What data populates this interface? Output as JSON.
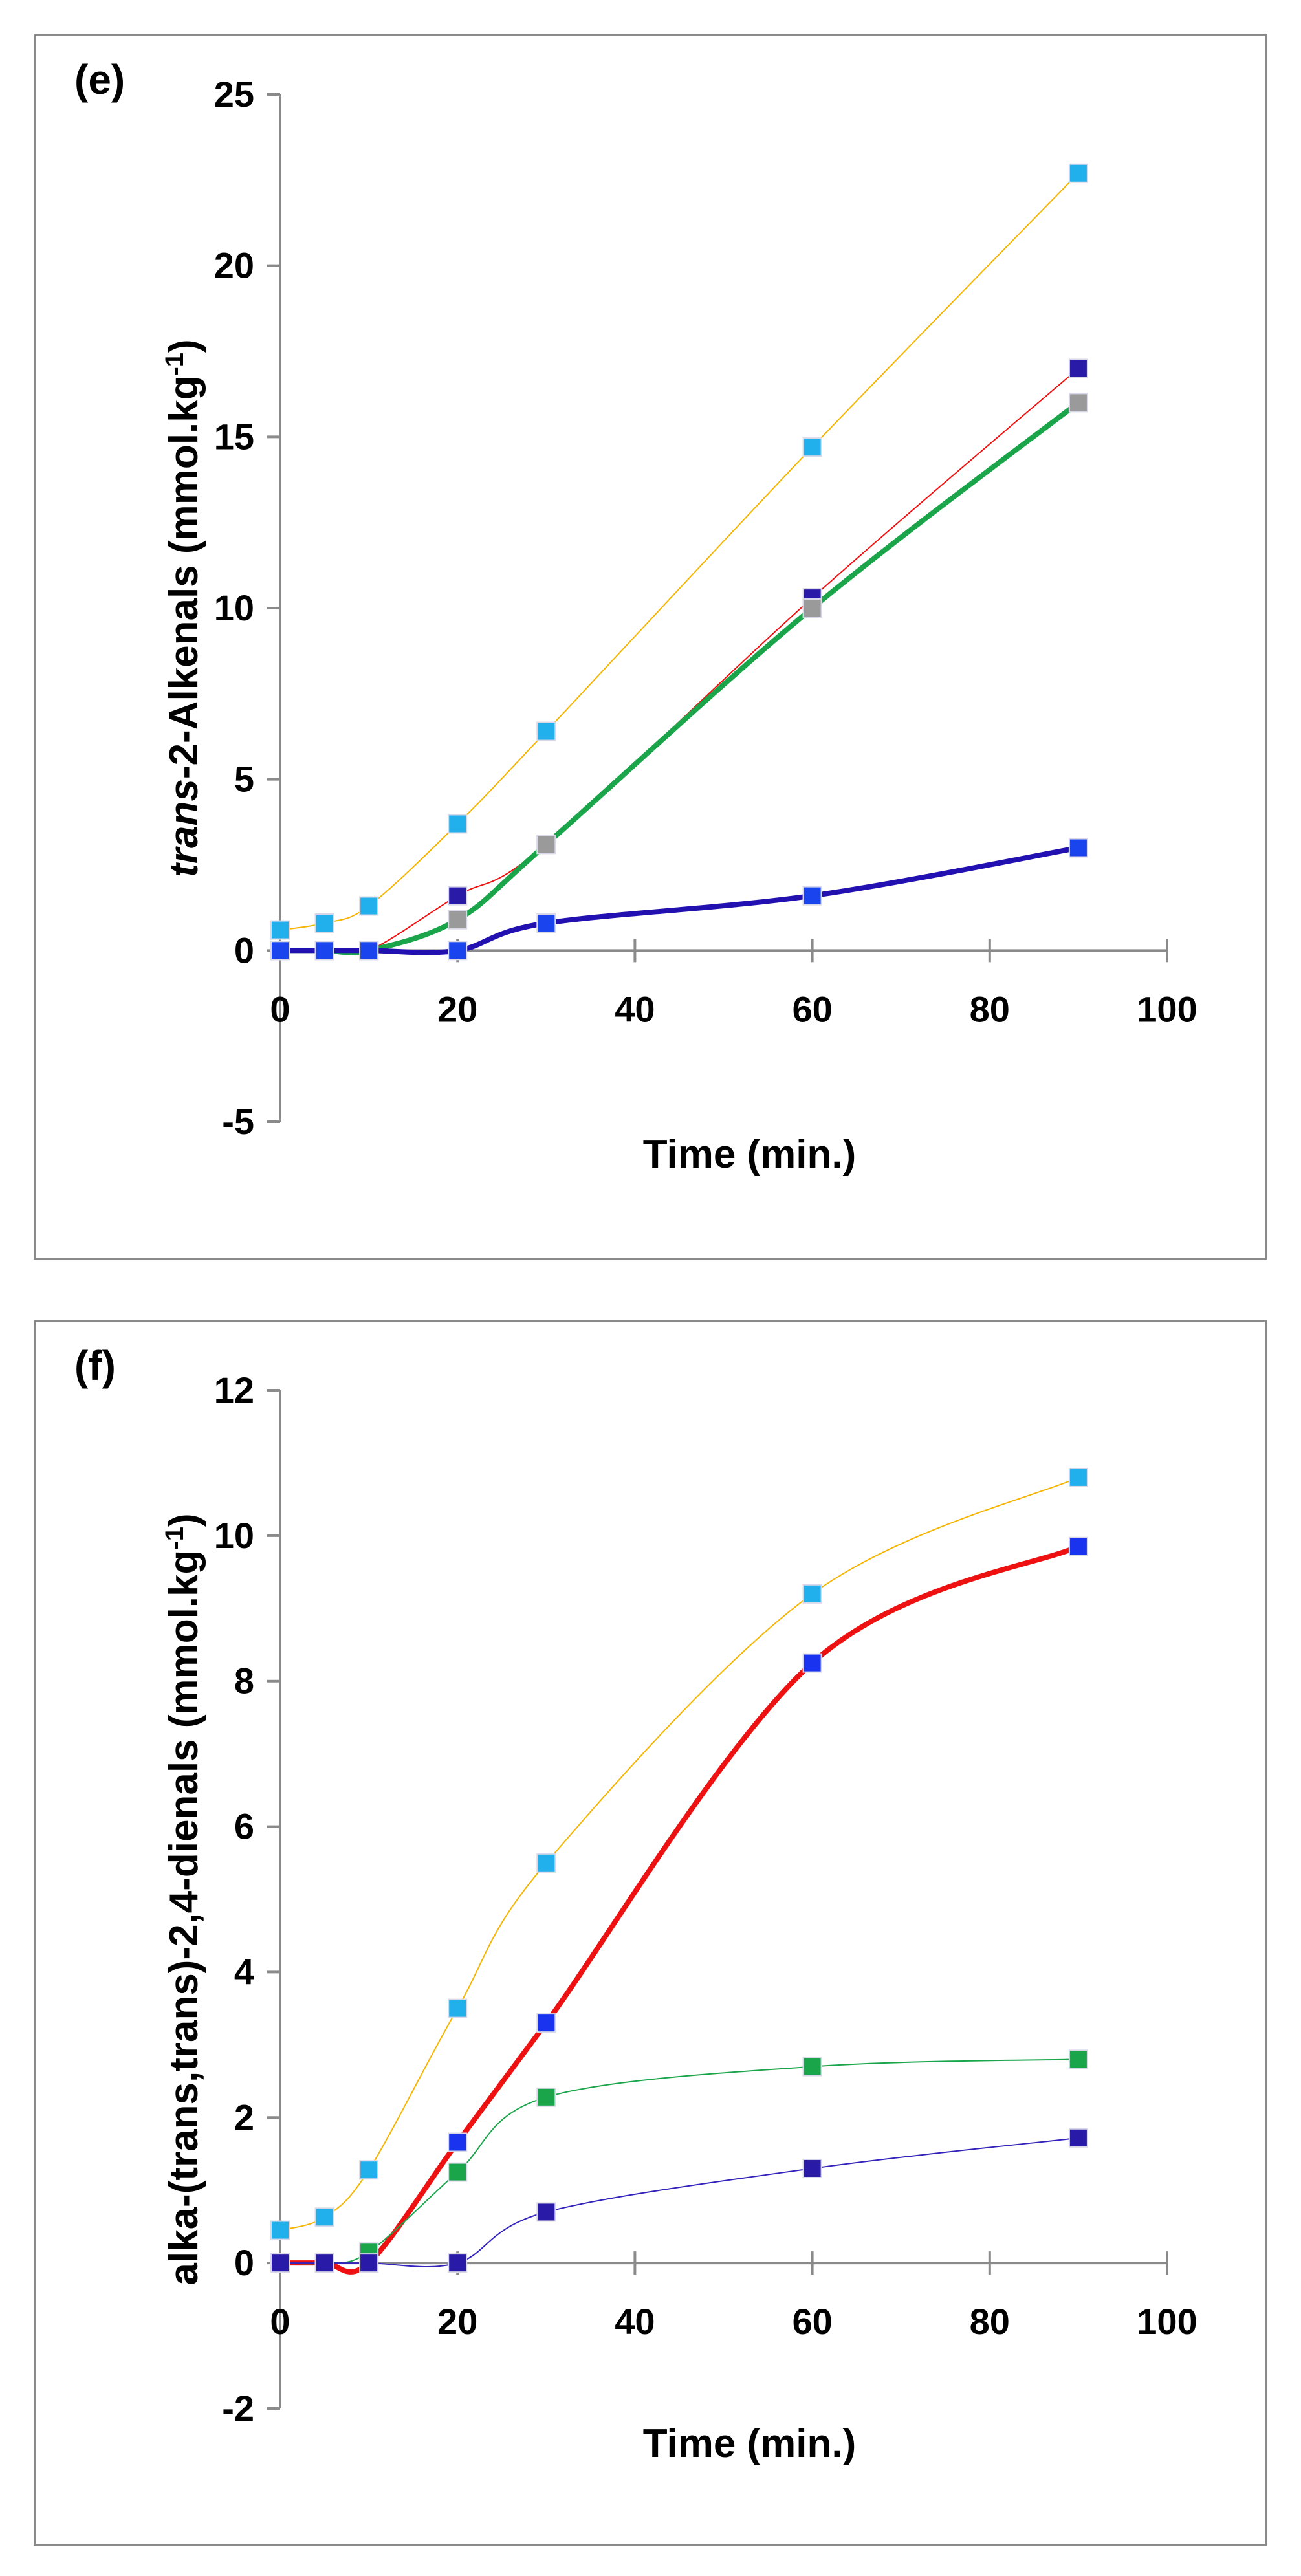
{
  "chart_data": [
    {
      "type": "line",
      "panel_label": "(e)",
      "xlabel": "Time (min.)",
      "ylabel_italic": "trans",
      "ylabel_rest": "-2-Alkenals (mmol.kg",
      "ylabel_sup": "-1",
      "ylabel_close": ")",
      "xlim": [
        0,
        100
      ],
      "ylim": [
        -5,
        25
      ],
      "xticks": [
        0,
        20,
        40,
        60,
        80,
        100
      ],
      "yticks": [
        -5,
        0,
        5,
        10,
        15,
        20,
        25
      ],
      "grid": false,
      "series": [
        {
          "color": "#f5b400",
          "marker_color": "#21b0ec",
          "line_width": 2,
          "x": [
            0,
            5,
            10,
            20,
            30,
            60,
            90
          ],
          "y": [
            0.6,
            0.8,
            1.3,
            3.7,
            6.4,
            14.7,
            22.7
          ]
        },
        {
          "color": "#ee1111",
          "marker_color": "#2a1aa8",
          "line_width": 2,
          "x": [
            0,
            5,
            10,
            20,
            30,
            60,
            90
          ],
          "y": [
            0,
            0,
            0,
            1.6,
            3.1,
            10.3,
            17.0
          ]
        },
        {
          "color": "#1aa54b",
          "marker_color": "#9a9a9a",
          "line_width": 8,
          "x": [
            0,
            5,
            10,
            20,
            30,
            60,
            90
          ],
          "y": [
            0,
            0,
            0,
            0.9,
            3.1,
            10.0,
            16.0
          ]
        },
        {
          "color": "#2211b0",
          "marker_color": "#1a44ee",
          "line_width": 8,
          "x": [
            0,
            5,
            10,
            20,
            30,
            60,
            90
          ],
          "y": [
            0,
            0,
            0,
            0,
            0.8,
            1.6,
            3.0
          ]
        }
      ]
    },
    {
      "type": "line",
      "panel_label": "(f)",
      "xlabel": "Time (min.)",
      "ylabel_italic": "",
      "ylabel_rest": "alka-(trans,trans)-2,4-dienals (mmol.kg",
      "ylabel_sup": "-1",
      "ylabel_close": ")",
      "xlim": [
        0,
        100
      ],
      "ylim": [
        -2,
        12
      ],
      "xticks": [
        0,
        20,
        40,
        60,
        80,
        100
      ],
      "yticks": [
        -2,
        0,
        2,
        4,
        6,
        8,
        10,
        12
      ],
      "grid": false,
      "series": [
        {
          "color": "#f5b400",
          "marker_color": "#21b0ec",
          "line_width": 2,
          "x": [
            0,
            5,
            10,
            20,
            30,
            60,
            90
          ],
          "y": [
            0.45,
            0.63,
            1.28,
            3.5,
            5.5,
            9.2,
            10.8
          ]
        },
        {
          "color": "#ee1111",
          "marker_color": "#1a33ee",
          "line_width": 8,
          "x": [
            0,
            5,
            10,
            20,
            30,
            60,
            90
          ],
          "y": [
            0,
            0,
            0,
            1.66,
            3.3,
            8.25,
            9.85
          ]
        },
        {
          "color": "#1aa54b",
          "marker_color": "#1aa54b",
          "line_width": 2,
          "x": [
            0,
            5,
            10,
            20,
            30,
            60,
            90
          ],
          "y": [
            0,
            0,
            0.15,
            1.25,
            2.28,
            2.7,
            2.8
          ]
        },
        {
          "color": "#3322bb",
          "marker_color": "#2a1aa8",
          "line_width": 2,
          "x": [
            0,
            5,
            10,
            20,
            30,
            60,
            90
          ],
          "y": [
            0,
            0,
            0,
            0,
            0.7,
            1.3,
            1.72
          ]
        }
      ]
    }
  ]
}
